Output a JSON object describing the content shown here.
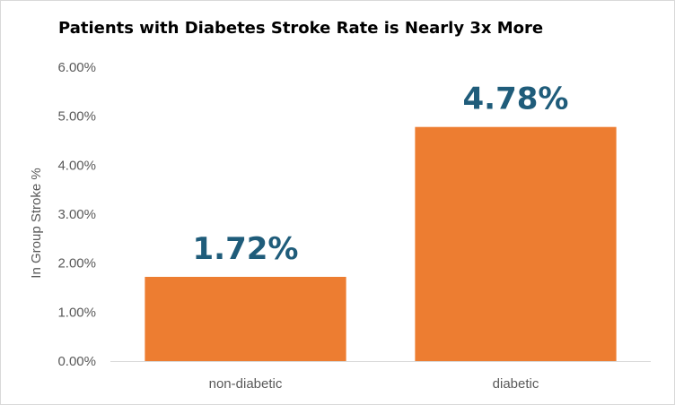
{
  "chart_data": {
    "type": "bar",
    "title": "Patients with Diabetes Stroke Rate is Nearly 3x More",
    "xlabel": "",
    "ylabel": "In Group Stroke %",
    "categories": [
      "non-diabetic",
      "diabetic"
    ],
    "values": [
      1.72,
      4.78
    ],
    "data_labels": [
      "1.72%",
      "4.78%"
    ],
    "yticks": [
      "0.00%",
      "1.00%",
      "2.00%",
      "3.00%",
      "4.00%",
      "5.00%",
      "6.00%"
    ],
    "ylim": [
      0,
      6
    ],
    "grid": false,
    "legend": "none",
    "bar_color": "#ED7D31",
    "label_color": "#1F5C7A"
  }
}
